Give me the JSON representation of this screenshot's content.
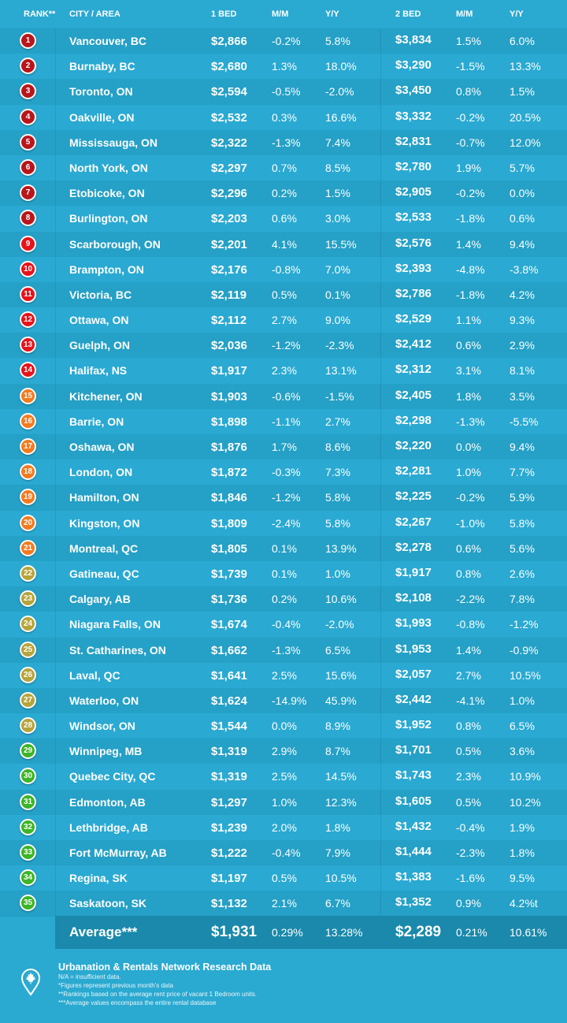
{
  "header": {
    "rank": "RANK**",
    "city": "CITY / AREA",
    "bed1": "1 BED",
    "mm1": "M/M",
    "yy1": "Y/Y",
    "bed2": "2 BED",
    "mm2": "M/M",
    "yy2": "Y/Y"
  },
  "badge_colors": {
    "1-8": "#b9161c",
    "9-14": "#e8121a",
    "15-21": "#f47a1f",
    "22-28": "#b7a43a",
    "29-35": "#3cb526"
  },
  "rows": [
    [
      "1",
      "Vancouver, BC",
      "$2,866",
      "-0.2%",
      "5.8%",
      "$3,834",
      "1.5%",
      "6.0%"
    ],
    [
      "2",
      "Burnaby, BC",
      "$2,680",
      "1.3%",
      "18.0%",
      "$3,290",
      "-1.5%",
      "13.3%"
    ],
    [
      "3",
      "Toronto, ON",
      "$2,594",
      "-0.5%",
      "-2.0%",
      "$3,450",
      "0.8%",
      "1.5%"
    ],
    [
      "4",
      "Oakville, ON",
      "$2,532",
      "0.3%",
      "16.6%",
      "$3,332",
      "-0.2%",
      "20.5%"
    ],
    [
      "5",
      "Mississauga, ON",
      "$2,322",
      "-1.3%",
      "7.4%",
      "$2,831",
      "-0.7%",
      "12.0%"
    ],
    [
      "6",
      "North York, ON",
      "$2,297",
      "0.7%",
      "8.5%",
      "$2,780",
      "1.9%",
      "5.7%"
    ],
    [
      "7",
      "Etobicoke, ON",
      "$2,296",
      "0.2%",
      "1.5%",
      "$2,905",
      "-0.2%",
      "0.0%"
    ],
    [
      "8",
      "Burlington, ON",
      "$2,203",
      "0.6%",
      "3.0%",
      "$2,533",
      "-1.8%",
      "0.6%"
    ],
    [
      "9",
      "Scarborough, ON",
      "$2,201",
      "4.1%",
      "15.5%",
      "$2,576",
      "1.4%",
      "9.4%"
    ],
    [
      "10",
      "Brampton, ON",
      "$2,176",
      "-0.8%",
      "7.0%",
      "$2,393",
      "-4.8%",
      "-3.8%"
    ],
    [
      "11",
      "Victoria, BC",
      "$2,119",
      "0.5%",
      "0.1%",
      "$2,786",
      "-1.8%",
      "4.2%"
    ],
    [
      "12",
      "Ottawa, ON",
      "$2,112",
      "2.7%",
      "9.0%",
      "$2,529",
      "1.1%",
      "9.3%"
    ],
    [
      "13",
      "Guelph, ON",
      "$2,036",
      "-1.2%",
      "-2.3%",
      "$2,412",
      "0.6%",
      "2.9%"
    ],
    [
      "14",
      "Halifax, NS",
      "$1,917",
      "2.3%",
      "13.1%",
      "$2,312",
      "3.1%",
      "8.1%"
    ],
    [
      "15",
      "Kitchener, ON",
      "$1,903",
      "-0.6%",
      "-1.5%",
      "$2,405",
      "1.8%",
      "3.5%"
    ],
    [
      "16",
      "Barrie, ON",
      "$1,898",
      "-1.1%",
      "2.7%",
      "$2,298",
      "-1.3%",
      "-5.5%"
    ],
    [
      "17",
      "Oshawa, ON",
      "$1,876",
      "1.7%",
      "8.6%",
      "$2,220",
      "0.0%",
      "9.4%"
    ],
    [
      "18",
      "London, ON",
      "$1,872",
      "-0.3%",
      "7.3%",
      "$2,281",
      "1.0%",
      "7.7%"
    ],
    [
      "19",
      "Hamilton, ON",
      "$1,846",
      "-1.2%",
      "5.8%",
      "$2,225",
      "-0.2%",
      "5.9%"
    ],
    [
      "20",
      "Kingston, ON",
      "$1,809",
      "-2.4%",
      "5.8%",
      "$2,267",
      "-1.0%",
      "5.8%"
    ],
    [
      "21",
      "Montreal, QC",
      "$1,805",
      "0.1%",
      "13.9%",
      "$2,278",
      "0.6%",
      "5.6%"
    ],
    [
      "22",
      "Gatineau, QC",
      "$1,739",
      "0.1%",
      "1.0%",
      "$1,917",
      "0.8%",
      "2.6%"
    ],
    [
      "23",
      "Calgary, AB",
      "$1,736",
      "0.2%",
      "10.6%",
      "$2,108",
      "-2.2%",
      "7.8%"
    ],
    [
      "24",
      "Niagara Falls, ON",
      "$1,674",
      "-0.4%",
      "-2.0%",
      "$1,993",
      "-0.8%",
      "-1.2%"
    ],
    [
      "25",
      "St. Catharines, ON",
      "$1,662",
      "-1.3%",
      "6.5%",
      "$1,953",
      "1.4%",
      "-0.9%"
    ],
    [
      "26",
      "Laval, QC",
      "$1,641",
      "2.5%",
      "15.6%",
      "$2,057",
      "2.7%",
      "10.5%"
    ],
    [
      "27",
      "Waterloo, ON",
      "$1,624",
      "-14.9%",
      "45.9%",
      "$2,442",
      "-4.1%",
      "1.0%"
    ],
    [
      "28",
      "Windsor, ON",
      "$1,544",
      "0.0%",
      "8.9%",
      "$1,952",
      "0.8%",
      "6.5%"
    ],
    [
      "29",
      "Winnipeg, MB",
      "$1,319",
      "2.9%",
      "8.7%",
      "$1,701",
      "0.5%",
      "3.6%"
    ],
    [
      "30",
      "Quebec City, QC",
      "$1,319",
      "2.5%",
      "14.5%",
      "$1,743",
      "2.3%",
      "10.9%"
    ],
    [
      "31",
      "Edmonton, AB",
      "$1,297",
      "1.0%",
      "12.3%",
      "$1,605",
      "0.5%",
      "10.2%"
    ],
    [
      "32",
      "Lethbridge, AB",
      "$1,239",
      "2.0%",
      "1.8%",
      "$1,432",
      "-0.4%",
      "1.9%"
    ],
    [
      "33",
      "Fort McMurray, AB",
      "$1,222",
      "-0.4%",
      "7.9%",
      "$1,444",
      "-2.3%",
      "1.8%"
    ],
    [
      "34",
      "Regina, SK",
      "$1,197",
      "0.5%",
      "10.5%",
      "$1,383",
      "-1.6%",
      "9.5%"
    ],
    [
      "35",
      "Saskatoon, SK",
      "$1,132",
      "2.1%",
      "6.7%",
      "$1,352",
      "0.9%",
      "4.2%t"
    ]
  ],
  "average": {
    "label": "Average***",
    "bed1": "$1,931",
    "mm1": "0.29%",
    "yy1": "13.28%",
    "bed2": "$2,289",
    "mm2": "0.21%",
    "yy2": "10.61%"
  },
  "footer": {
    "title": "Urbanation & Rentals Network Research Data",
    "notes": [
      "N/A = insufficient data.",
      "*Figures represent previous month's data",
      "**Rankings based on the average rent price of vacant 1 Bedroom units.",
      "***Average values encompass the entire rental database"
    ]
  }
}
